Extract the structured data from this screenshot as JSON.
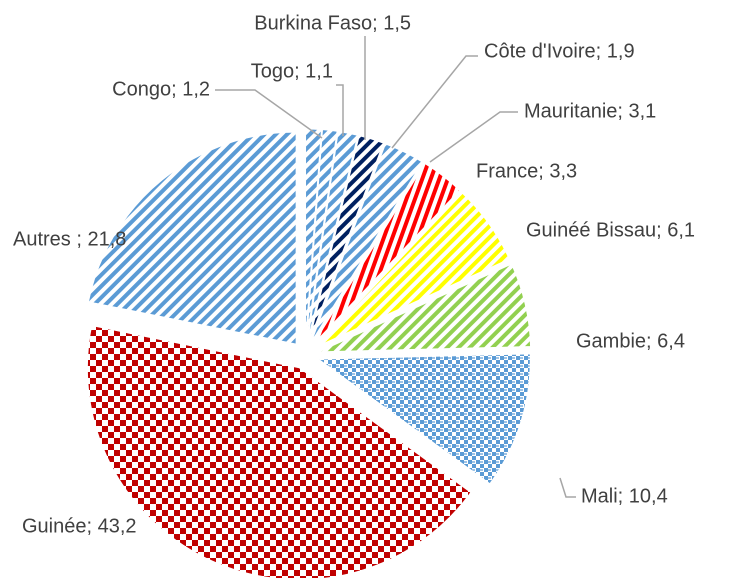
{
  "chart_data": {
    "type": "pie",
    "values": [
      1.2,
      1.1,
      1.5,
      1.9,
      3.1,
      3.3,
      6.1,
      6.4,
      10.4,
      43.2,
      21.8
    ],
    "value_labels": [
      "Congo; 1,2",
      "Togo; 1,1",
      "Burkina Faso; 1,5",
      "Côte d'Ivoire; 1,9",
      "Mauritanie; 3,1",
      "France; 3,3",
      "Guinéé Bissau; 6,1",
      "Gambie; 6,4",
      "Mali; 10,4",
      "Guinée; 43,2",
      "Autres ; 21,8"
    ],
    "colors": [
      "#5b9bd5",
      "#5b9bd5",
      "#5b9bd5",
      "#002060",
      "#5b9bd5",
      "#ff0000",
      "#ffff00",
      "#92d050",
      "#5b9bd5",
      "#c00000",
      "#5b9bd5"
    ],
    "patterns": [
      "diagonal",
      "diagonal",
      "diagonal",
      "diagonal",
      "diagonal",
      "diagonal",
      "diagonal",
      "diagonal",
      "weave",
      "checker",
      "diagonal"
    ]
  }
}
